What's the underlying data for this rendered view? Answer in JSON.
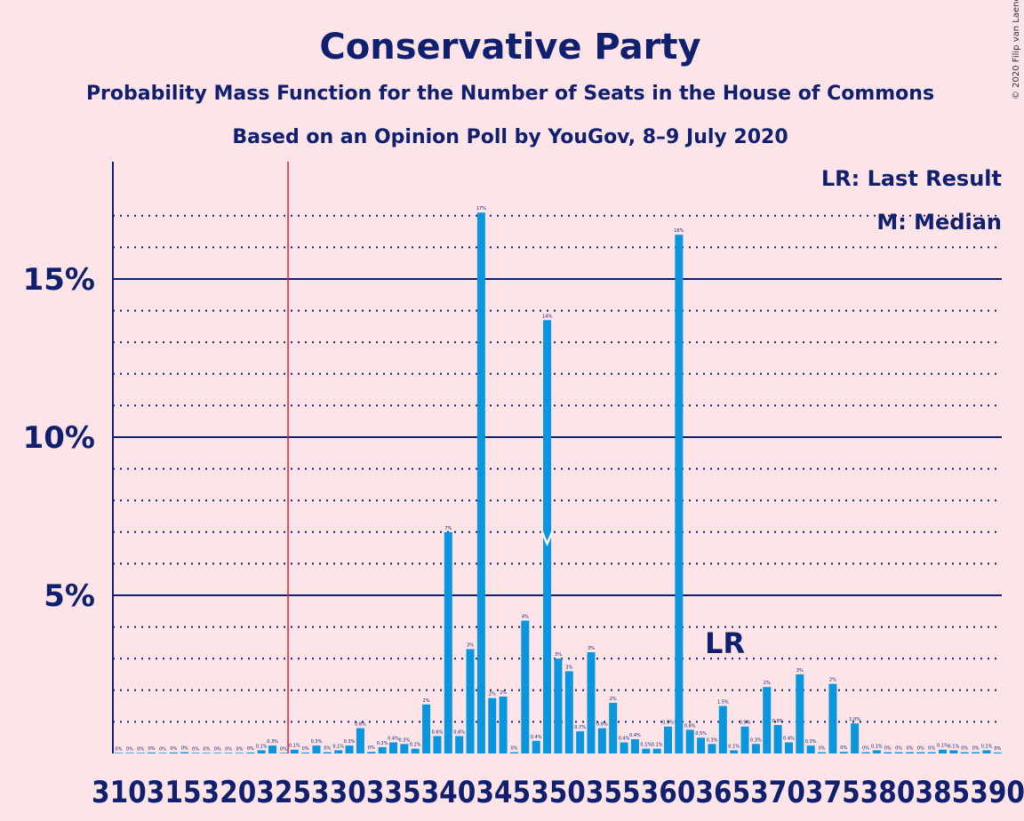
{
  "copyright": "© 2020 Filip van Laenen",
  "chart_data": {
    "type": "bar",
    "title": "Conservative Party",
    "subtitle": "Probability Mass Function for the Number of Seats in the House of Commons",
    "subtitle2": "Based on an Opinion Poll by YouGov, 8–9 July 2020",
    "legend": [
      "LR: Last Result",
      "M: Median"
    ],
    "legend_position": "top-right",
    "y_ticks": [
      {
        "value": 5,
        "label": "5%"
      },
      {
        "value": 10,
        "label": "10%"
      },
      {
        "value": 15,
        "label": "15%"
      }
    ],
    "ylim": [
      0,
      18.5
    ],
    "grid": true,
    "x_tick_labels": [
      "310",
      "315",
      "320",
      "325",
      "330",
      "335",
      "340",
      "345",
      "350",
      "355",
      "360",
      "365",
      "370",
      "375",
      "380",
      "385",
      "390"
    ],
    "x_tick_text": "31031532032533033534034535035536036537037538038539​0",
    "seats": [
      310,
      311,
      312,
      313,
      314,
      315,
      316,
      317,
      318,
      319,
      320,
      321,
      322,
      323,
      324,
      325,
      326,
      327,
      328,
      329,
      330,
      331,
      332,
      333,
      334,
      335,
      336,
      337,
      338,
      339,
      340,
      341,
      342,
      343,
      344,
      345,
      346,
      347,
      348,
      349,
      350,
      351,
      352,
      353,
      354,
      355,
      356,
      357,
      358,
      359,
      360,
      361,
      362,
      363,
      364,
      365,
      366,
      367,
      368,
      369,
      370,
      371,
      372,
      373,
      374,
      375,
      376,
      377,
      378,
      379,
      380,
      381,
      382,
      383,
      384,
      385,
      386,
      387,
      388,
      389,
      390
    ],
    "values": [
      0.02,
      0.02,
      0.02,
      0.03,
      0.02,
      0.03,
      0.04,
      0.02,
      0.02,
      0.02,
      0.02,
      0.02,
      0.03,
      0.1,
      0.25,
      0.02,
      0.12,
      0.03,
      0.25,
      0.04,
      0.1,
      0.25,
      0.8,
      0.05,
      0.2,
      0.35,
      0.3,
      0.15,
      1.55,
      0.55,
      7.0,
      0.55,
      3.3,
      17.1,
      1.75,
      1.8,
      0.04,
      4.2,
      0.4,
      13.7,
      3.0,
      2.6,
      0.7,
      3.2,
      0.8,
      1.6,
      0.35,
      0.45,
      0.15,
      0.15,
      0.85,
      16.4,
      0.75,
      0.5,
      0.3,
      1.5,
      0.1,
      0.85,
      0.3,
      2.1,
      0.9,
      0.35,
      2.5,
      0.25,
      0.04,
      2.2,
      0.05,
      0.95,
      0.04,
      0.1,
      0.04,
      0.04,
      0.04,
      0.04,
      0.04,
      0.12,
      0.1,
      0.04,
      0.04,
      0.1,
      0.03
    ],
    "data_labels": [
      "0%",
      "0%",
      "0%",
      "0%",
      "0%",
      "0%",
      "0%",
      "0%",
      "0%",
      "0%",
      "0%",
      "0%",
      "0%",
      "0.1%",
      "0.3%",
      "0%",
      "0.1%",
      "0%",
      "0.3%",
      "0%",
      "0.1%",
      "0.3%",
      "0.8%",
      "0%",
      "0.2%",
      "0.4%",
      "0.3%",
      "0.2%",
      "2%",
      "0.6%",
      "7%",
      "0.6%",
      "3%",
      "17%",
      "2%",
      "2%",
      "0%",
      "4%",
      "0.4%",
      "14%",
      "3%",
      "3%",
      "0.7%",
      "3%",
      "0.8%",
      "2%",
      "0.4%",
      "0.4%",
      "0.1%",
      "0.1%",
      "0.9%",
      "16%",
      "0.8%",
      "0.5%",
      "0.3%",
      "1.5%",
      "0.1%",
      "0.9%",
      "0.3%",
      "2%",
      "0.9%",
      "0.4%",
      "3%",
      "0.3%",
      "0%",
      "2%",
      "0%",
      "1.0%",
      "0%",
      "0.1%",
      "0%",
      "0%",
      "0%",
      "0%",
      "0%",
      "0.1%",
      "0.1%",
      "0%",
      "0%",
      "0.1%",
      "0%"
    ],
    "last_result": {
      "seat": 326,
      "label": "LR"
    },
    "median": {
      "seat": 349,
      "label": "M"
    },
    "colors": {
      "bar": "#0a96de",
      "background": "#fce4e8",
      "text": "#10206e",
      "last_result_line": "#e0202a",
      "median_marker": "#ffffff"
    }
  }
}
